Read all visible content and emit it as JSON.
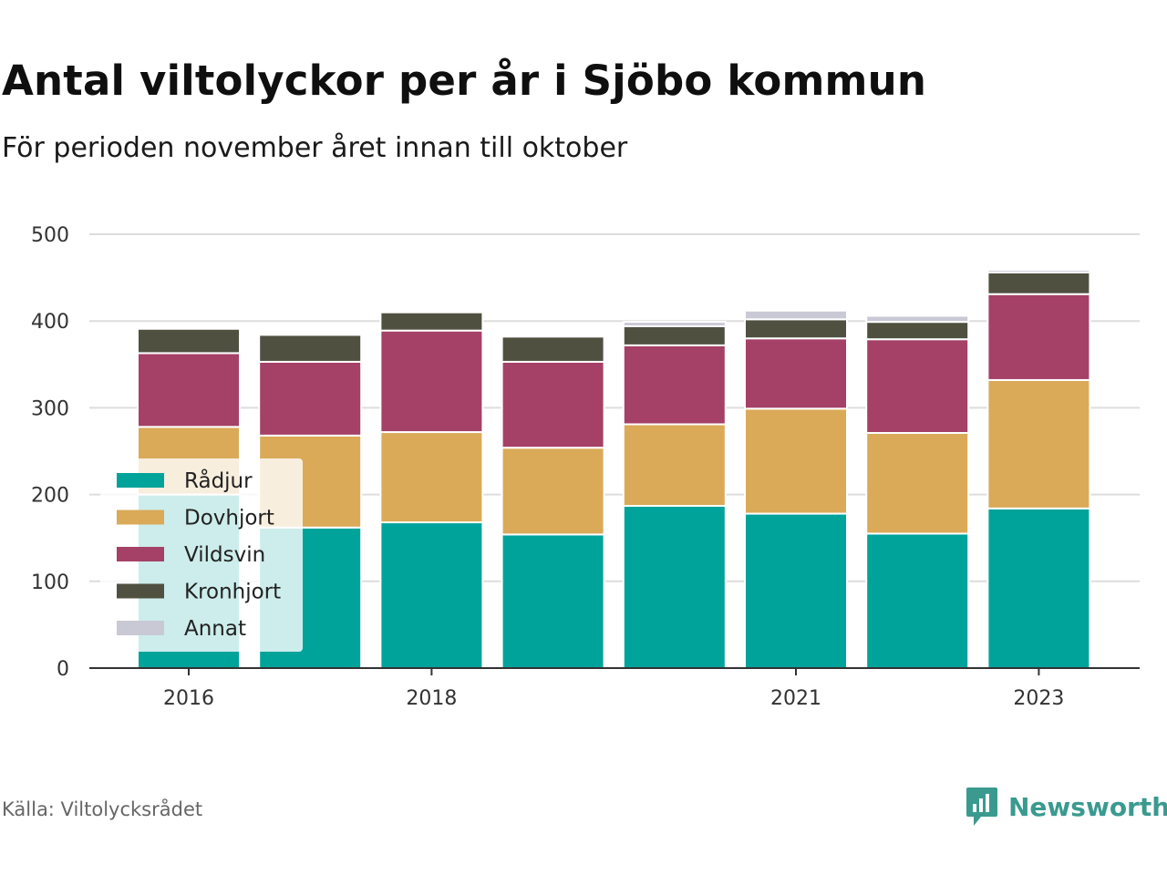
{
  "header": {
    "title": "Antal viltolyckor per år i Sjöbo kommun",
    "subtitle": "För perioden november året innan till oktober"
  },
  "footer": {
    "source": "Källa: Viltolycksrådet",
    "brand": "Newsworthy"
  },
  "colors": {
    "background": "#ffffff",
    "grid": "#dddddd",
    "axis": "#333333",
    "brand": "#3a9a8f"
  },
  "chart_data": {
    "type": "bar",
    "stacked": true,
    "title": "Antal viltolyckor per år i Sjöbo kommun",
    "subtitle": "För perioden november året innan till oktober",
    "x": [
      2016,
      2017,
      2018,
      2019,
      2020,
      2021,
      2022,
      2023
    ],
    "x_tick_labels": [
      "2016",
      "2018",
      "2021",
      "2023"
    ],
    "x_tick_values": [
      2016,
      2018,
      2021,
      2023
    ],
    "ylim": [
      0,
      500
    ],
    "y_ticks": [
      0,
      100,
      200,
      300,
      400,
      500
    ],
    "grid": true,
    "legend_position": "bottom-left",
    "series": [
      {
        "name": "Rådjur",
        "color": "#00a39a",
        "values": [
          200,
          162,
          168,
          154,
          187,
          178,
          155,
          184
        ]
      },
      {
        "name": "Dovhjort",
        "color": "#daaa59",
        "values": [
          78,
          106,
          104,
          100,
          94,
          121,
          116,
          148
        ]
      },
      {
        "name": "Vildsvin",
        "color": "#a54066",
        "values": [
          85,
          85,
          117,
          99,
          91,
          81,
          108,
          99
        ]
      },
      {
        "name": "Kronhjort",
        "color": "#4f5040",
        "values": [
          28,
          31,
          21,
          29,
          22,
          22,
          20,
          25
        ]
      },
      {
        "name": "Annat",
        "color": "#c9c9d6",
        "values": [
          0,
          0,
          0,
          0,
          5,
          10,
          7,
          3
        ]
      }
    ]
  }
}
